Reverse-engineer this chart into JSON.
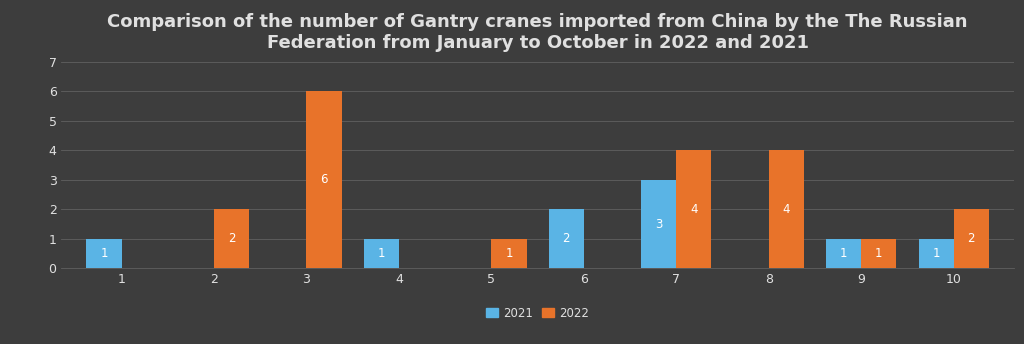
{
  "title": "Comparison of the number of Gantry cranes imported from China by the The Russian\nFederation from January to October in 2022 and 2021",
  "months": [
    1,
    2,
    3,
    4,
    5,
    6,
    7,
    8,
    9,
    10
  ],
  "values_2021": [
    1,
    0,
    0,
    1,
    0,
    2,
    3,
    0,
    1,
    1
  ],
  "values_2022": [
    0,
    2,
    6,
    0,
    1,
    0,
    4,
    4,
    1,
    2
  ],
  "color_2021": "#5ab4e5",
  "color_2022": "#e8732a",
  "background_color": "#3d3d3d",
  "grid_color": "#606060",
  "text_color": "#e0e0e0",
  "ylim": [
    0,
    7
  ],
  "yticks": [
    0,
    1,
    2,
    3,
    4,
    5,
    6,
    7
  ],
  "bar_width": 0.38,
  "legend_labels": [
    "2021",
    "2022"
  ],
  "title_fontsize": 13,
  "label_fontsize": 8.5,
  "tick_fontsize": 9
}
